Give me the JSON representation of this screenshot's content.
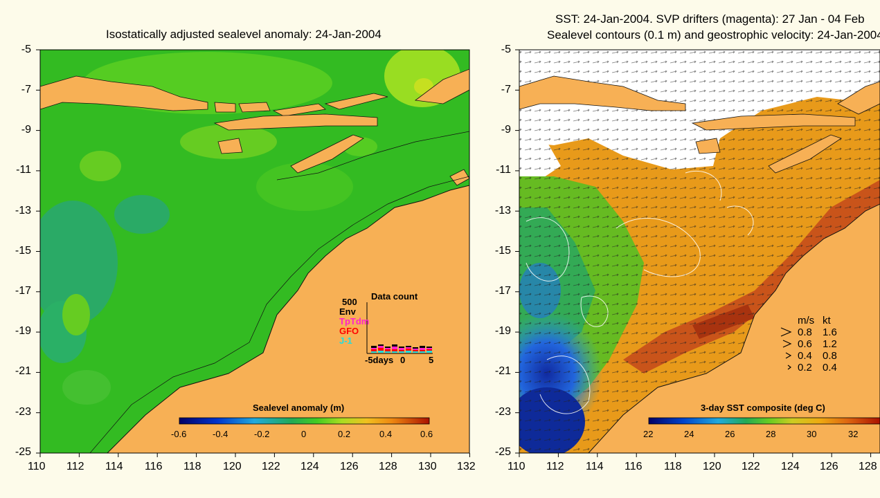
{
  "left_panel": {
    "title": "Isostatically adjusted sealevel anomaly: 24-Jan-2004",
    "colorbar": {
      "label": "Sealevel anomaly (m)",
      "ticks": [
        "-0.6",
        "-0.4",
        "-0.2",
        "0",
        "0.2",
        "0.4",
        "0.6"
      ]
    },
    "inset": {
      "title": "Data count",
      "ymax": "500",
      "legend": [
        {
          "label": "Env",
          "color": "#000000"
        },
        {
          "label": "TpTdm",
          "color": "#ff22cc"
        },
        {
          "label": "GFO",
          "color": "#ff0000"
        },
        {
          "label": "J-1",
          "color": "#22dddd"
        }
      ],
      "xlabels": [
        "-5days",
        "0",
        "5"
      ]
    }
  },
  "right_panel": {
    "title_line1": "SST: 24-Jan-2004. SVP drifters (magenta): 27 Jan - 04 Feb",
    "title_line2": "Sealevel contours (0.1 m) and geostrophic velocity: 24-Jan-2004",
    "colorbar": {
      "label": "3-day SST composite (deg C)",
      "ticks": [
        "22",
        "24",
        "26",
        "28",
        "30",
        "32"
      ]
    },
    "velocity_legend": {
      "header_ms": "m/s",
      "header_kt": "kt",
      "rows": [
        {
          "ms": "0.8",
          "kt": "1.6"
        },
        {
          "ms": "0.6",
          "kt": "1.2"
        },
        {
          "ms": "0.4",
          "kt": "0.8"
        },
        {
          "ms": "0.2",
          "kt": "0.4"
        }
      ]
    }
  },
  "axes": {
    "y_ticks": [
      "-5",
      "-7",
      "-9",
      "-11",
      "-13",
      "-15",
      "-17",
      "-19",
      "-21",
      "-23",
      "-25"
    ],
    "left_x_ticks": [
      "110",
      "112",
      "114",
      "116",
      "118",
      "120",
      "122",
      "124",
      "126",
      "128",
      "130",
      "132"
    ],
    "right_x_ticks": [
      "110",
      "112",
      "114",
      "116",
      "118",
      "120",
      "122",
      "124",
      "126",
      "128"
    ]
  },
  "colors": {
    "background": "#fdfbea",
    "land": "#f7b055",
    "ocean_green": "#33bb22",
    "ocean_light": "#88dd22",
    "ocean_teal": "#22aa77",
    "sst_orange": "#e89a1a",
    "sst_blue": "#2255cc"
  }
}
